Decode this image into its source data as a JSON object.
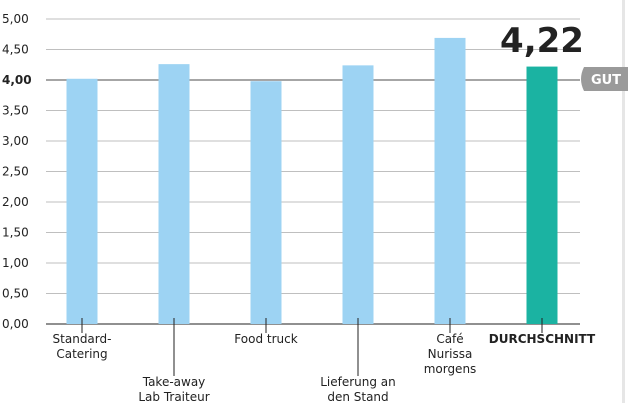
{
  "chart_data": {
    "type": "bar",
    "categories": [
      [
        "Standard-",
        "Catering"
      ],
      [
        "Take-away",
        "Lab Traiteur"
      ],
      [
        "Food truck"
      ],
      [
        "Lieferung an",
        "den Stand"
      ],
      [
        "Café",
        "Nurissa",
        "morgens"
      ],
      [
        "DURCHSCHNITT"
      ]
    ],
    "values": [
      4.02,
      4.26,
      3.98,
      4.24,
      4.69,
      4.22
    ],
    "highlight_index": 4,
    "yticks": [
      "0,00",
      "0,50",
      "1,00",
      "1,50",
      "2,00",
      "2,50",
      "3,00",
      "3,50",
      "4,00",
      "4,50",
      "5,00"
    ],
    "ylim": [
      0,
      5
    ],
    "reference_line": 4.0,
    "average_label": "4,22",
    "grade_badge": "GUT",
    "grid": true
  },
  "colors": {
    "bar": "#9dd3f3",
    "highlight": "#1bb3a2",
    "grid": "#bfbfbf",
    "reference": "#888888",
    "text": "#222222",
    "badge_bg": "#9a9a9a",
    "badge_text": "#ffffff"
  }
}
